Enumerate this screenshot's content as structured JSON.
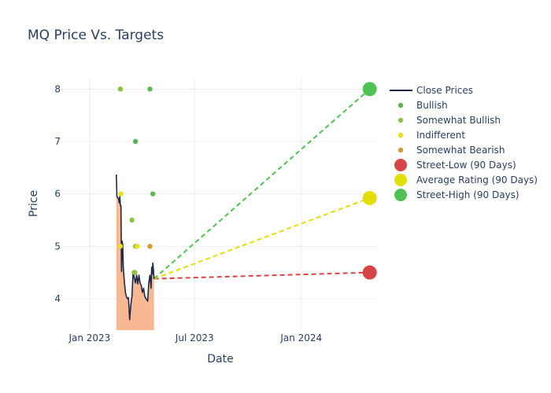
{
  "chart_data": {
    "type": "scatter",
    "title": "MQ Price Vs. Targets",
    "xlabel": "Date",
    "ylabel": "Price",
    "xlim": [
      "2022-11-16",
      "2024-05-12"
    ],
    "ylim": [
      3.4,
      8.2
    ],
    "x_ticks": [
      {
        "date": "2023-01-01",
        "label": "Jan 2023"
      },
      {
        "date": "2023-07-01",
        "label": "Jul 2023"
      },
      {
        "date": "2024-01-01",
        "label": "Jan 2024"
      }
    ],
    "y_ticks": [
      4,
      5,
      6,
      7,
      8
    ],
    "grid": true,
    "legend_position": "right",
    "close_prices": {
      "name": "Close Prices",
      "color": "#1f2a44",
      "fill_color": "#f9b894",
      "points": [
        [
          "2023-02-16",
          6.37
        ],
        [
          "2023-02-17",
          5.95
        ],
        [
          "2023-02-20",
          5.9
        ],
        [
          "2023-02-21",
          5.83
        ],
        [
          "2023-02-22",
          5.95
        ],
        [
          "2023-02-23",
          5.78
        ],
        [
          "2023-02-24",
          5.77
        ],
        [
          "2023-02-25",
          4.52
        ],
        [
          "2023-02-26",
          5.1
        ],
        [
          "2023-02-27",
          5.03
        ],
        [
          "2023-02-28",
          4.6
        ],
        [
          "2023-03-01",
          4.45
        ],
        [
          "2023-03-02",
          4.3
        ],
        [
          "2023-03-04",
          4.1
        ],
        [
          "2023-03-06",
          4.02
        ],
        [
          "2023-03-07",
          4.0
        ],
        [
          "2023-03-09",
          4.02
        ],
        [
          "2023-03-10",
          3.8
        ],
        [
          "2023-03-11",
          3.6
        ],
        [
          "2023-03-13",
          3.88
        ],
        [
          "2023-03-15",
          4.05
        ],
        [
          "2023-03-17",
          4.52
        ],
        [
          "2023-03-19",
          4.4
        ],
        [
          "2023-03-21",
          4.3
        ],
        [
          "2023-03-23",
          4.45
        ],
        [
          "2023-03-25",
          4.28
        ],
        [
          "2023-03-27",
          4.45
        ],
        [
          "2023-03-29",
          4.3
        ],
        [
          "2023-03-31",
          4.25
        ],
        [
          "2023-04-02",
          4.12
        ],
        [
          "2023-04-04",
          4.2
        ],
        [
          "2023-04-06",
          4.05
        ],
        [
          "2023-04-08",
          4.0
        ],
        [
          "2023-04-10",
          3.98
        ],
        [
          "2023-04-11",
          3.95
        ],
        [
          "2023-04-13",
          4.3
        ],
        [
          "2023-04-15",
          4.45
        ],
        [
          "2023-04-17",
          4.2
        ],
        [
          "2023-04-18",
          4.6
        ],
        [
          "2023-04-19",
          4.47
        ],
        [
          "2023-04-20",
          4.68
        ],
        [
          "2023-04-21",
          4.55
        ],
        [
          "2023-04-22",
          4.38
        ]
      ]
    },
    "analyst_ratings": [
      {
        "name": "Bullish",
        "color": "#5ab552",
        "points": [
          [
            "2023-02-23",
            8.0
          ],
          [
            "2023-03-21",
            7.0
          ],
          [
            "2023-03-19",
            4.5
          ],
          [
            "2023-04-15",
            8.0
          ],
          [
            "2023-04-20",
            6.0
          ]
        ]
      },
      {
        "name": "Somewhat Bullish",
        "color": "#8fc23a",
        "points": [
          [
            "2023-02-23",
            8.0
          ],
          [
            "2023-03-15",
            5.5
          ],
          [
            "2023-03-21",
            5.0
          ],
          [
            "2023-03-20",
            4.5
          ]
        ]
      },
      {
        "name": "Indifferent",
        "color": "#e5e01c",
        "points": [
          [
            "2023-02-24",
            6.0
          ],
          [
            "2023-02-23",
            5.0
          ],
          [
            "2023-03-24",
            5.0
          ]
        ]
      },
      {
        "name": "Somewhat Bearish",
        "color": "#d99a2b",
        "points": [
          [
            "2023-04-15",
            5.0
          ]
        ]
      }
    ],
    "targets": [
      {
        "name": "Street-Low (90 Days)",
        "color": "#d64545",
        "value": 4.5,
        "date": "2024-04-28"
      },
      {
        "name": "Average Rating (90 Days)",
        "color": "#e2df07",
        "value": 5.92,
        "date": "2024-04-28"
      },
      {
        "name": "Street-High (90 Days)",
        "color": "#4fc255",
        "value": 8.0,
        "date": "2024-04-28"
      }
    ],
    "target_lines": {
      "start_date": "2023-04-22",
      "start_value": 4.38
    },
    "legend": [
      "Close Prices",
      "Bullish",
      "Somewhat Bullish",
      "Indifferent",
      "Somewhat Bearish",
      "Street-Low (90 Days)",
      "Average Rating (90 Days)",
      "Street-High (90 Days)"
    ]
  }
}
